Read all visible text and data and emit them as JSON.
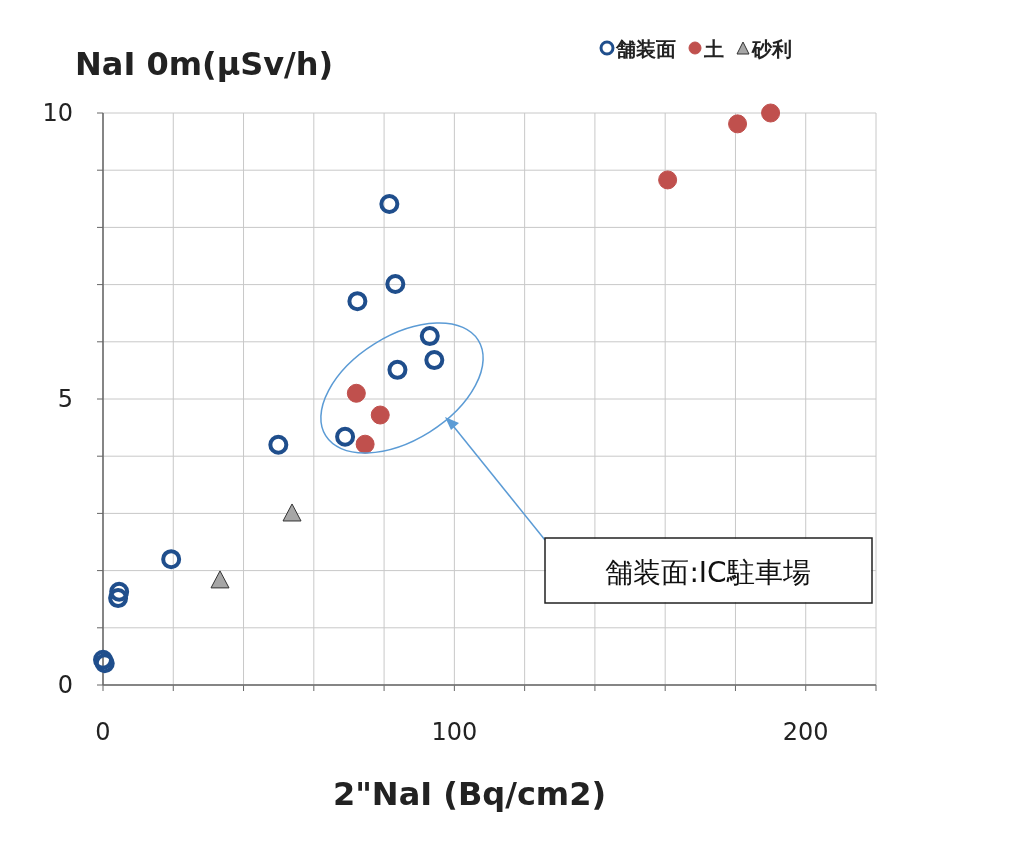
{
  "chart_data": {
    "type": "scatter",
    "xlabel": "2\"NaI (Bq/cm2)",
    "ylabel": "NaI 0m(μSv/h)",
    "xlim": [
      0,
      220
    ],
    "ylim": [
      0,
      10
    ],
    "xticks": [
      0,
      {
        "value": 20,
        "label": null
      },
      {
        "value": 40,
        "label": null
      },
      {
        "value": 60,
        "label": null
      },
      {
        "value": 80,
        "label": null
      },
      100,
      {
        "value": 120,
        "label": null
      },
      {
        "value": 140,
        "label": null
      },
      {
        "value": 160,
        "label": null
      },
      {
        "value": 180,
        "label": null
      },
      200,
      {
        "value": 220,
        "label": null
      }
    ],
    "yticks": [
      0,
      {
        "value": 1,
        "label": null
      },
      {
        "value": 2,
        "label": null
      },
      {
        "value": 3,
        "label": null
      },
      {
        "value": 4,
        "label": null
      },
      5,
      {
        "value": 6,
        "label": null
      },
      {
        "value": 7,
        "label": null
      },
      {
        "value": 8,
        "label": null
      },
      {
        "value": 9,
        "label": null
      },
      10
    ],
    "grid": true,
    "legend": "top right",
    "annotations": [
      "舗装面:IC駐車場"
    ],
    "series": [
      {
        "name": "舗装面",
        "color": "#1f4e8c",
        "marker": "circle",
        "x": [
          0,
          0.5,
          4.3,
          4.6,
          19.4,
          49.9,
          68.9,
          72.4,
          81.5,
          83.2,
          83.8,
          93.0,
          94.3
        ],
        "values": [
          0.44,
          0.38,
          1.52,
          1.63,
          2.2,
          4.2,
          4.34,
          6.71,
          8.41,
          7.01,
          5.51,
          6.1,
          5.68
        ]
      },
      {
        "name": "土",
        "color": "#c0504d",
        "marker": "circle",
        "x": [
          72.1,
          78.9,
          74.6,
          160.7,
          180.6,
          190.0
        ],
        "values": [
          5.1,
          4.72,
          4.21,
          8.83,
          9.81,
          10.0
        ]
      },
      {
        "name": "砂利",
        "color": "#a6a6a6",
        "marker": "triangle",
        "x": [
          33.3,
          53.8
        ],
        "values": [
          1.82,
          2.99
        ]
      }
    ]
  }
}
